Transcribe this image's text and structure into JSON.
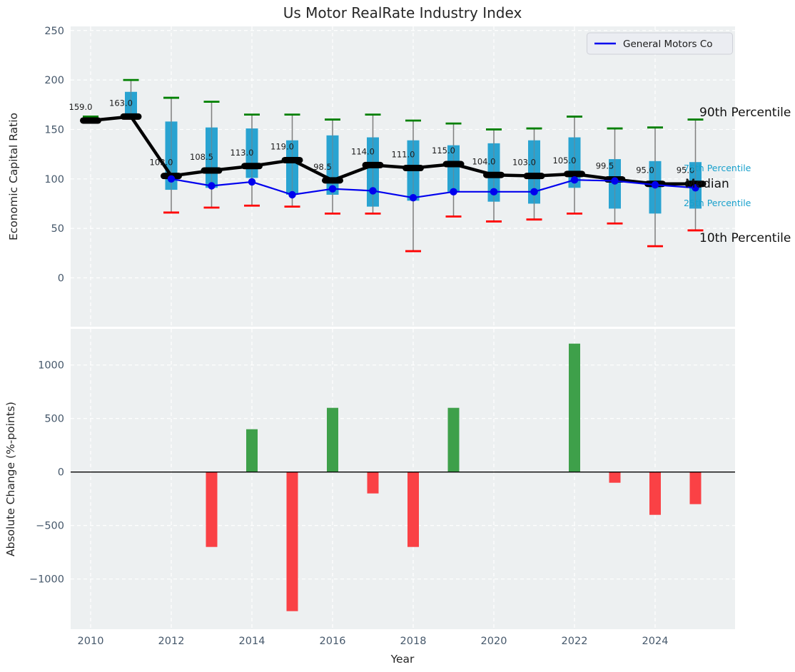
{
  "title": "Us Motor RealRate Industry Index",
  "xlabel": "Year",
  "legend": {
    "label": "General Motors Co"
  },
  "annotations": {
    "p90": "90th Percentile",
    "p75": "75th Percentile",
    "median": "Median",
    "p25": "25th Percentile",
    "p10": "10th Percentile"
  },
  "colors": {
    "plot_bg": "#edf0f1",
    "grid": "#ffffff",
    "box_fill": "#29a3d1",
    "whisker": "#808080",
    "cap_90": "#008000",
    "cap_10": "#fe0000",
    "median_line": "#000000",
    "gm_line": "#0000ee",
    "bar_positive": "#3ea04a",
    "bar_negative": "#fa4145",
    "zero_line": "#000000",
    "tick_text": "#46586b",
    "annotation_cyan": "#18a0cc"
  },
  "chart_data": [
    {
      "type": "boxplot",
      "title": "Us Motor RealRate Industry Index",
      "ylabel": "Economic Capital Ratio",
      "ylim": [
        -49,
        254
      ],
      "yticks": [
        0,
        50,
        100,
        150,
        200,
        250
      ],
      "xticks": [
        2010,
        2012,
        2014,
        2016,
        2018,
        2020,
        2022,
        2024
      ],
      "grid": true,
      "legend_position": "upper right",
      "years": [
        2010,
        2011,
        2012,
        2013,
        2014,
        2015,
        2016,
        2017,
        2018,
        2019,
        2020,
        2021,
        2022,
        2023,
        2024,
        2025
      ],
      "p90": [
        163,
        200,
        182,
        178,
        165,
        165,
        160,
        165,
        159,
        156,
        150,
        151,
        163,
        151,
        152,
        160
      ],
      "p75": [
        160.5,
        188,
        158,
        152,
        151,
        139,
        144,
        142,
        139,
        134,
        136,
        139,
        142,
        120,
        118,
        117
      ],
      "median": [
        159.0,
        163.0,
        103.0,
        108.5,
        113.0,
        119.0,
        98.5,
        114.0,
        111.0,
        115.0,
        104.0,
        103.0,
        105.0,
        99.5,
        95.0,
        95.0
      ],
      "p25": [
        158,
        162.5,
        89,
        91,
        101,
        84,
        84,
        72,
        78,
        87,
        77,
        75,
        91,
        70,
        65,
        70
      ],
      "p10": [
        157,
        161,
        66,
        71,
        73,
        72,
        65,
        65,
        27,
        62,
        57,
        59,
        65,
        55,
        32,
        48
      ],
      "median_labels": [
        "159.0",
        "163.0",
        "103.0",
        "108.5",
        "113.0",
        "119.0",
        "98.5",
        "114.0",
        "111.0",
        "115.0",
        "104.0",
        "103.0",
        "105.0",
        "99.5",
        "95.0",
        "95.0"
      ],
      "series": [
        {
          "name": "General Motors Co",
          "x": [
            2012,
            2013,
            2014,
            2015,
            2016,
            2017,
            2018,
            2019,
            2020,
            2021,
            2022,
            2023,
            2024,
            2025
          ],
          "values": [
            100,
            93,
            97,
            84,
            90,
            88,
            81,
            87,
            87,
            87,
            99,
            98,
            94,
            91
          ]
        }
      ]
    },
    {
      "type": "bar",
      "ylabel": "Absolute Change (%-points)",
      "xlabel": "Year",
      "ylim": [
        -1450,
        1340
      ],
      "yticks": [
        -1000,
        -500,
        0,
        500,
        1000
      ],
      "xticks": [
        2010,
        2012,
        2014,
        2016,
        2018,
        2020,
        2022,
        2024
      ],
      "grid": true,
      "years": [
        2010,
        2011,
        2012,
        2013,
        2014,
        2015,
        2016,
        2017,
        2018,
        2019,
        2020,
        2021,
        2022,
        2023,
        2024,
        2025
      ],
      "values": [
        0,
        0,
        0,
        -700,
        400,
        -1300,
        600,
        -200,
        -700,
        600,
        0,
        0,
        1200,
        -100,
        -400,
        -300
      ]
    }
  ]
}
